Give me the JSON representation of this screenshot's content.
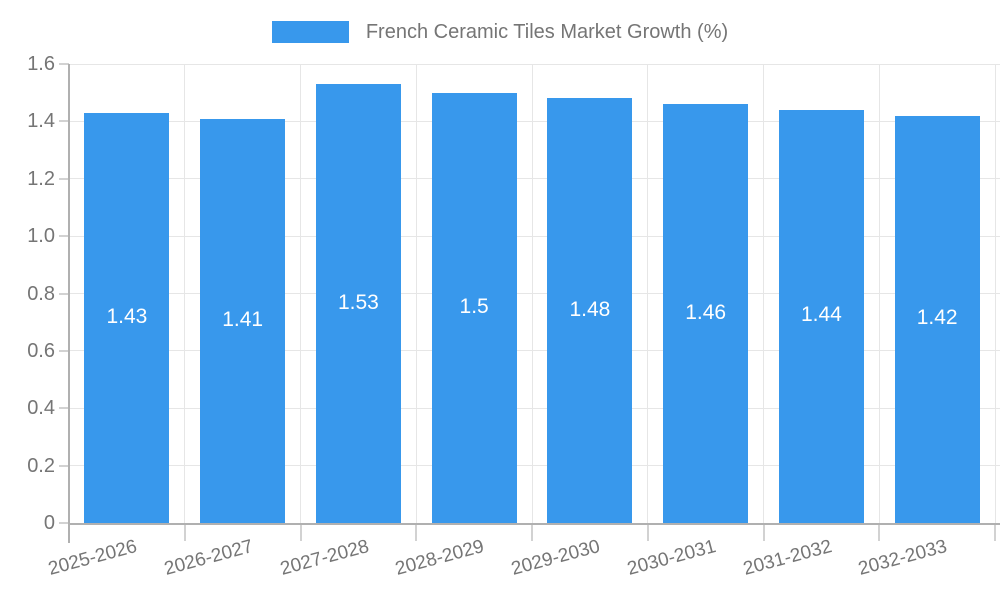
{
  "chart_data": {
    "type": "bar",
    "title": "French Ceramic Tiles Market Growth (%)",
    "categories": [
      "2025-2026",
      "2026-2027",
      "2027-2028",
      "2028-2029",
      "2029-2030",
      "2030-2031",
      "2031-2032",
      "2032-2033"
    ],
    "values": [
      1.43,
      1.41,
      1.53,
      1.5,
      1.48,
      1.46,
      1.44,
      1.42
    ],
    "value_labels": [
      "1.43",
      "1.41",
      "1.53",
      "1.5",
      "1.48",
      "1.46",
      "1.44",
      "1.42"
    ],
    "xlabel": "",
    "ylabel": "",
    "ylim": [
      0,
      1.6
    ],
    "ytick_step": 0.2,
    "ytick_labels": [
      "0",
      "0.2",
      "0.4",
      "0.6",
      "0.8",
      "1.0",
      "1.2",
      "1.4",
      "1.6"
    ],
    "grid": "horizontal and vertical",
    "legend_position": "top-center",
    "colors": {
      "bar": "#3898ec",
      "grid": "#e6e6e6",
      "tick": "#d2d2d2",
      "axis": "#b0b0b0",
      "text": "#757575",
      "value_label": "#ffffff",
      "background": "#ffffff"
    }
  }
}
